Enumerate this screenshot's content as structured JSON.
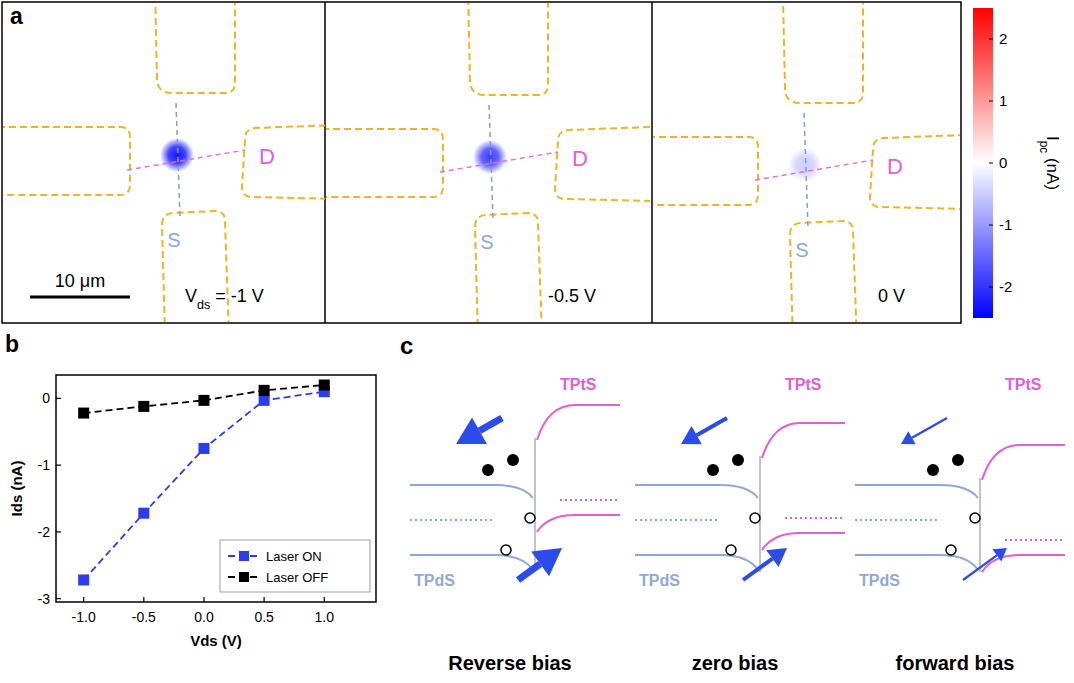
{
  "panel_labels": {
    "a": "a",
    "b": "b",
    "c": "c"
  },
  "photocurrent_maps": {
    "scale_bar": "10 μm",
    "colorbar": {
      "label": [
        {
          "t": "I"
        },
        {
          "t": "pc",
          "sub": true
        },
        {
          "t": " (nA)"
        }
      ],
      "lim": [
        -2.5,
        2.5
      ],
      "ticks": [
        -2,
        -1,
        0,
        1,
        2
      ]
    },
    "maps": [
      {
        "bias_label": [
          {
            "t": "V"
          },
          {
            "t": "ds",
            "sub": true
          },
          {
            "t": " = -1 V"
          }
        ],
        "spot_value": -2.3,
        "source": "S",
        "drain": "D"
      },
      {
        "bias_label": [
          {
            "t": "-0.5 V"
          }
        ],
        "spot_value": -1.9,
        "source": "S",
        "drain": "D"
      },
      {
        "bias_label": [
          {
            "t": "0 V"
          }
        ],
        "spot_value": -0.5,
        "source": "S",
        "drain": "D"
      }
    ]
  },
  "band_diagrams": [
    {
      "caption": "Reverse bias",
      "left": "TPdS",
      "right": "TPtS"
    },
    {
      "caption": "zero bias",
      "left": "TPdS",
      "right": "TPtS"
    },
    {
      "caption": "forward bias",
      "left": "TPdS",
      "right": "TPtS"
    }
  ],
  "chart_data": {
    "type": "line",
    "x_label": "Vds (V)",
    "y_label": "Ids (nA)",
    "x": [
      -1,
      -0.5,
      0,
      0.5,
      1
    ],
    "series": [
      {
        "name": "Laser ON",
        "color": "#2b3de8",
        "marker": "square",
        "line_style": "dashed",
        "values": [
          -2.72,
          -1.72,
          -0.75,
          -0.03,
          0.1
        ]
      },
      {
        "name": "Laser OFF",
        "color": "#000000",
        "marker": "square",
        "line_style": "dashed",
        "values": [
          -0.22,
          -0.12,
          -0.03,
          0.12,
          0.2
        ]
      }
    ],
    "xlim": [
      -1.23,
      1.43
    ],
    "ylim": [
      -3.05,
      0.35
    ],
    "xticks": [
      {
        "value": -1,
        "label": "-1.0"
      },
      -0.5,
      {
        "value": 0,
        "label": "0.0"
      },
      0.5,
      {
        "value": 1,
        "label": "1.0"
      }
    ],
    "yticks": [
      -3,
      -2,
      -1,
      0
    ],
    "legend": "lower right",
    "grid": false
  }
}
